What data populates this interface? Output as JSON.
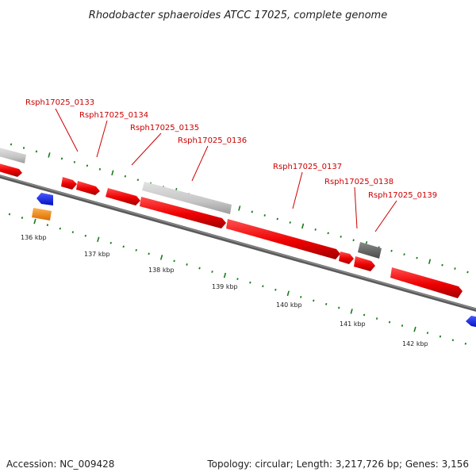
{
  "title": "Rhodobacter sphaeroides ATCC 17025, complete genome",
  "footer": {
    "accession": "Accession: NC_009428",
    "summary": "Topology: circular; Length: 3,217,726 bp; Genes: 3,156"
  },
  "colors": {
    "cds": "#ee0000",
    "cds_dark": "#b00000",
    "pseudo_light": "#c8c8c8",
    "pseudo_dark": "#6a6a6a",
    "rna_blue": "#0a1aee",
    "rna_orange": "#f08c1a",
    "axis": "#7a7a7a",
    "tick": "#1a7a1a",
    "label": "#cc0000"
  },
  "gene_labels": [
    {
      "text": "Rsph17025_0133"
    },
    {
      "text": "Rsph17025_0134"
    },
    {
      "text": "Rsph17025_0135"
    },
    {
      "text": "Rsph17025_0136"
    },
    {
      "text": "Rsph17025_0137"
    },
    {
      "text": "Rsph17025_0138"
    },
    {
      "text": "Rsph17025_0139"
    }
  ],
  "ticks": [
    "136 kbp",
    "137 kbp",
    "138 kbp",
    "139 kbp",
    "140 kbp",
    "141 kbp",
    "142 kbp"
  ]
}
